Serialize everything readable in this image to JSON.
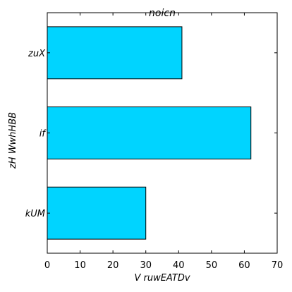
{
  "chart_data": {
    "type": "bar",
    "orientation": "horizontal",
    "title": "noicn",
    "xlabel": "V ruwEATDv",
    "ylabel": "zH WwhHBB",
    "categories": [
      "zuX",
      "if",
      "kUM"
    ],
    "values": [
      41,
      62,
      30
    ],
    "xlim": [
      0,
      70
    ],
    "xticks": [
      0,
      10,
      20,
      30,
      40,
      50,
      60,
      70
    ],
    "bar_color": "#00d4ff",
    "grid": false,
    "legend": "none"
  }
}
